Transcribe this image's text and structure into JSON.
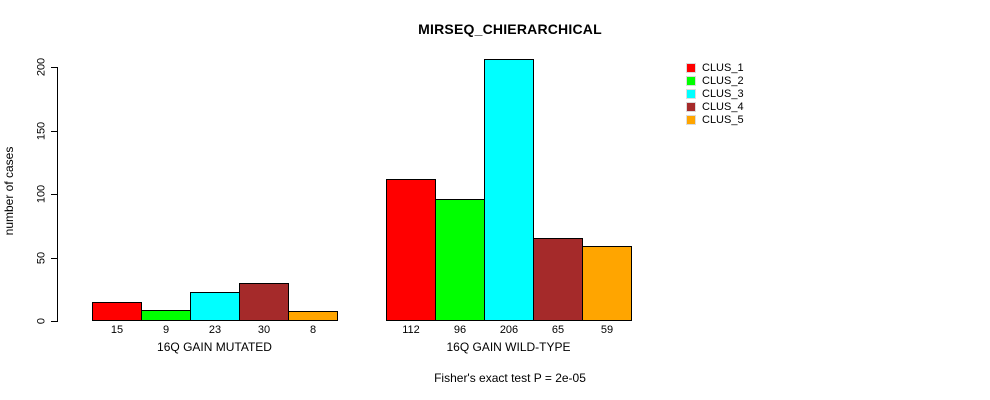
{
  "chart_data": {
    "type": "bar",
    "title": "MIRSEQ_CHIERARCHICAL",
    "subtitle": "Fisher's exact test P = 2e-05",
    "ylabel": "number of cases",
    "xlabel": "",
    "ylim": [
      0,
      200
    ],
    "yticks": [
      0,
      50,
      100,
      150,
      200
    ],
    "grid": false,
    "bar_value_labels": true,
    "legend_position": "top-right",
    "axis_color": "#000000",
    "background_color": "#FFFFFF",
    "categories": [
      "16Q GAIN MUTATED",
      "16Q GAIN WILD-TYPE"
    ],
    "series": [
      {
        "name": "CLUS_1",
        "color": "#FF0000",
        "values": [
          15,
          112
        ]
      },
      {
        "name": "CLUS_2",
        "color": "#00FF00",
        "values": [
          9,
          96
        ]
      },
      {
        "name": "CLUS_3",
        "color": "#00FFFF",
        "values": [
          23,
          206
        ]
      },
      {
        "name": "CLUS_4",
        "color": "#A52A2A",
        "values": [
          30,
          65
        ]
      },
      {
        "name": "CLUS_5",
        "color": "#FFA500",
        "values": [
          8,
          59
        ]
      }
    ]
  }
}
